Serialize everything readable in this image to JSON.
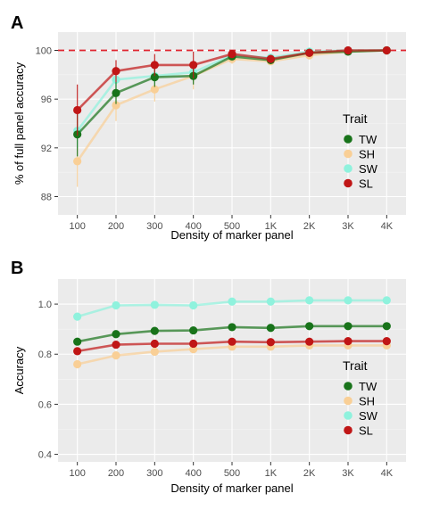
{
  "chart_data": [
    {
      "panel_label": "A",
      "type": "line",
      "x": [
        "100",
        "200",
        "300",
        "400",
        "500",
        "1K",
        "2K",
        "3K",
        "4K"
      ],
      "xlabel": "Density of marker panel",
      "ylabel": "% of full panel accuracy",
      "ylim": [
        86.5,
        101.5
      ],
      "yticks": [
        88,
        92,
        96,
        100
      ],
      "grid": true,
      "reference_line": {
        "y": 100,
        "style": "dashed",
        "color": "#e0252f"
      },
      "legend": {
        "title": "Trait",
        "position": "right",
        "items": [
          "TW",
          "SH",
          "SW",
          "SL"
        ]
      },
      "series": [
        {
          "name": "SH",
          "color": "#f9cf96",
          "values": [
            90.9,
            95.5,
            96.8,
            97.9,
            99.3,
            99.1,
            99.6,
            99.9,
            100
          ],
          "err_low": [
            88.8,
            94.2,
            95.8,
            96.8,
            98.9,
            98.8,
            99.4,
            99.8,
            99.9
          ],
          "err_high": [
            92.8,
            96.9,
            97.9,
            98.9,
            99.7,
            99.4,
            99.8,
            100.0,
            100.0
          ]
        },
        {
          "name": "SW",
          "color": "#8ff2dd",
          "values": [
            93.4,
            97.6,
            97.9,
            98.2,
            99.6,
            99.4,
            99.9,
            100,
            100
          ],
          "err_low": [
            92.0,
            96.8,
            97.3,
            97.6,
            99.4,
            99.2,
            99.7,
            99.9,
            99.9
          ],
          "err_high": [
            94.8,
            98.4,
            98.5,
            98.8,
            99.8,
            99.6,
            100.1,
            100.1,
            100.1
          ]
        },
        {
          "name": "TW",
          "color": "#18731a",
          "values": [
            93.1,
            96.5,
            97.8,
            97.9,
            99.5,
            99.2,
            99.8,
            99.9,
            100
          ],
          "err_low": [
            91.3,
            95.6,
            97.0,
            97.2,
            99.2,
            99.0,
            99.6,
            99.8,
            99.9
          ],
          "err_high": [
            94.9,
            97.4,
            98.6,
            98.6,
            99.8,
            99.4,
            100.0,
            100.0,
            100.1
          ]
        },
        {
          "name": "SL",
          "color": "#c01616",
          "values": [
            95.1,
            98.3,
            98.8,
            98.8,
            99.7,
            99.3,
            99.8,
            100,
            100
          ],
          "err_low": [
            93.0,
            97.4,
            97.9,
            97.7,
            99.4,
            99.1,
            99.6,
            99.9,
            99.9
          ],
          "err_high": [
            97.2,
            99.2,
            99.7,
            99.9,
            100.0,
            99.5,
            100.0,
            100.1,
            100.1
          ]
        }
      ]
    },
    {
      "panel_label": "B",
      "type": "line",
      "x": [
        "100",
        "200",
        "300",
        "400",
        "500",
        "1K",
        "2K",
        "3K",
        "4K"
      ],
      "xlabel": "Density of marker panel",
      "ylabel": "Accuracy",
      "ylim": [
        0.37,
        1.1
      ],
      "yticks": [
        "0.4",
        "0.6",
        "0.8",
        "1.0"
      ],
      "grid": true,
      "legend": {
        "title": "Trait",
        "position": "right",
        "items": [
          "TW",
          "SH",
          "SW",
          "SL"
        ]
      },
      "series": [
        {
          "name": "SH",
          "color": "#f9cf96",
          "values": [
            0.76,
            0.795,
            0.81,
            0.82,
            0.83,
            0.83,
            0.835,
            0.835,
            0.835
          ]
        },
        {
          "name": "SW",
          "color": "#8ff2dd",
          "values": [
            0.95,
            0.995,
            0.997,
            0.995,
            1.01,
            1.01,
            1.015,
            1.015,
            1.015
          ]
        },
        {
          "name": "TW",
          "color": "#18731a",
          "values": [
            0.85,
            0.88,
            0.893,
            0.895,
            0.908,
            0.905,
            0.912,
            0.912,
            0.912
          ]
        },
        {
          "name": "SL",
          "color": "#c01616",
          "values": [
            0.812,
            0.838,
            0.842,
            0.842,
            0.85,
            0.848,
            0.85,
            0.852,
            0.852
          ]
        }
      ]
    }
  ]
}
